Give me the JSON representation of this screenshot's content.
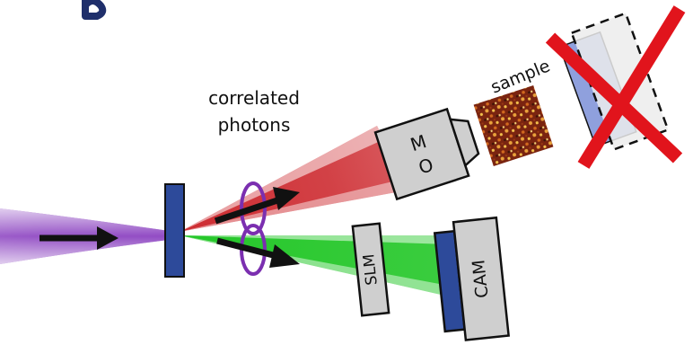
{
  "labels": {
    "correlated_line1": "correlated",
    "correlated_line2": "photons",
    "sample": "sample",
    "mo_line1": "M",
    "mo_line2": "O",
    "slm": "SLM",
    "cam": "CAM"
  },
  "icons": {
    "pump": "black-arrow-icon",
    "signal": "black-arrow-icon",
    "idler": "black-arrow-icon",
    "entanglement": "purple-ellipse-icon",
    "blocked": "red-cross-icon"
  },
  "colors": {
    "title": "#1f2f6b",
    "pump_beam": "#8a3fc0",
    "red_beam": "#c8151b",
    "green_beam": "#19c41e",
    "crystal": "#2d4a9a",
    "device_fill": "#cfcfcf",
    "camera_sensor": "#2d4a9a",
    "ellipse": "#7b2fb0",
    "cross": "#e1141c",
    "blocked_panel": "#8fa0dd"
  }
}
